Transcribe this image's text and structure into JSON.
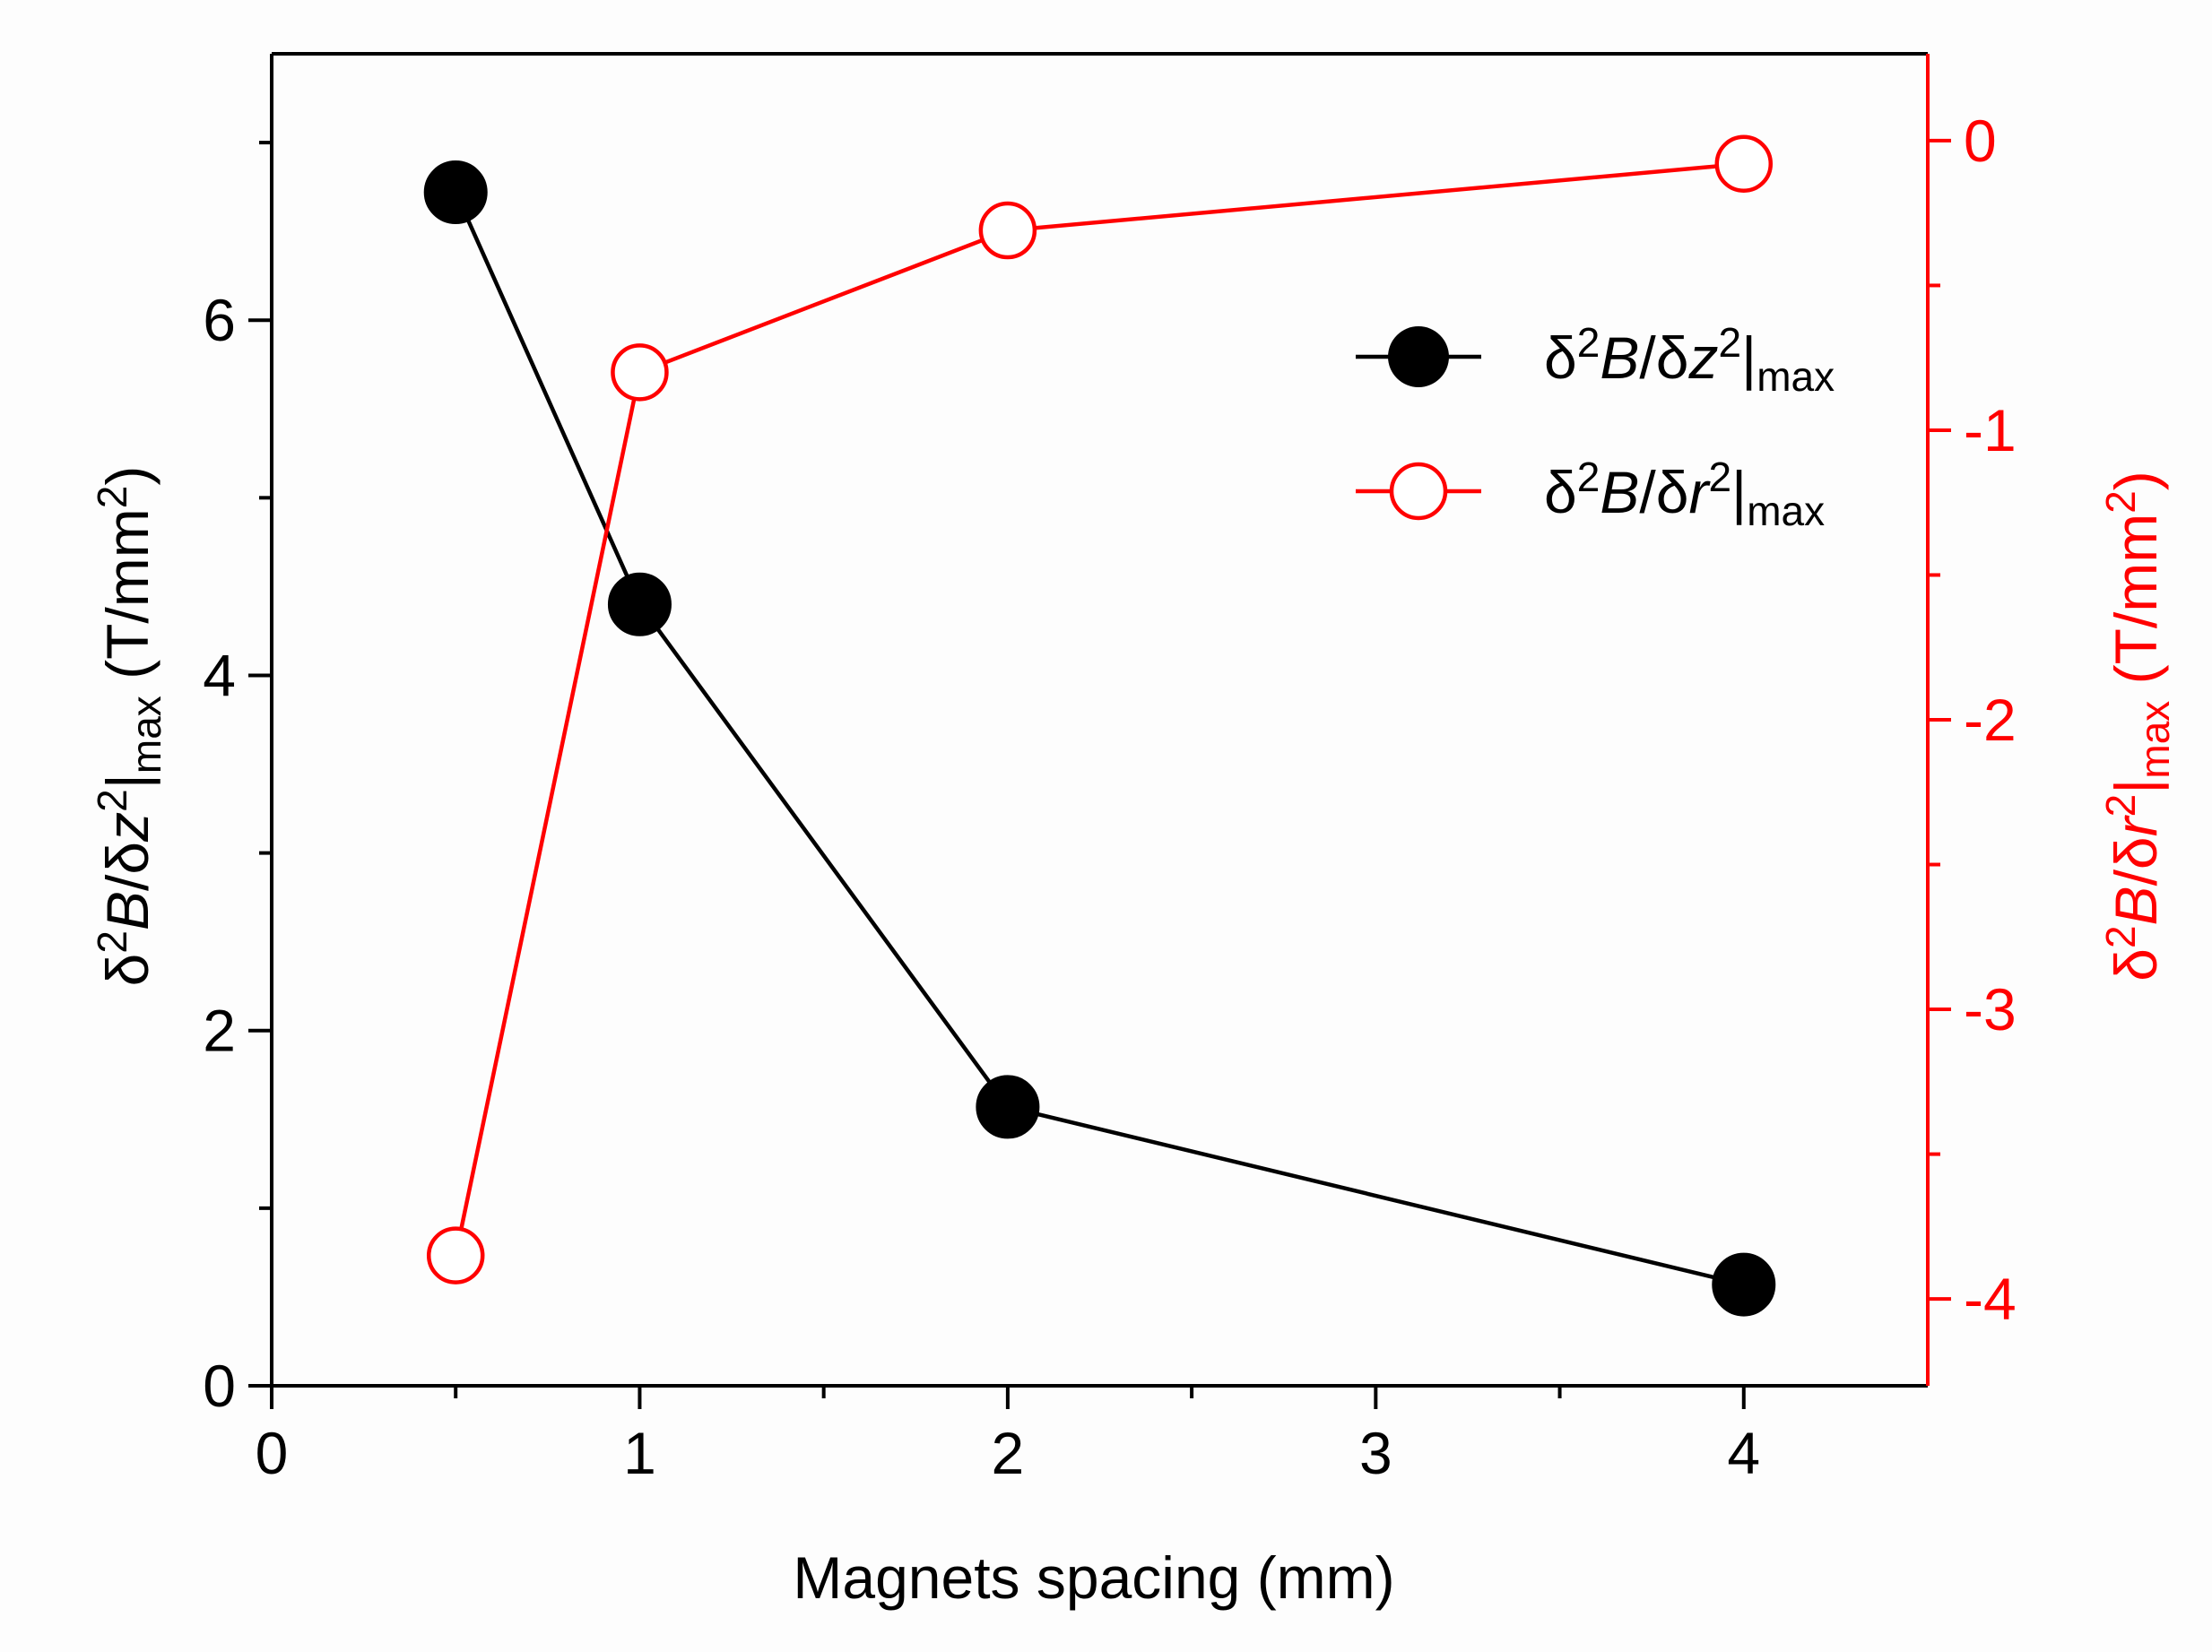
{
  "chart_data": {
    "type": "line",
    "xlabel": "Magnets spacing (mm)",
    "x_range": [
      0,
      4.5
    ],
    "x_ticks": [
      "0",
      "1",
      "2",
      "3",
      "4"
    ],
    "x_tick_values": [
      0,
      1,
      2,
      3,
      4
    ],
    "y_left": {
      "label_parts": [
        "δ",
        "2",
        "B",
        "/δ",
        "z",
        "2",
        "|",
        "max",
        " (T/mm",
        "2",
        ")"
      ],
      "range": [
        0,
        7.5
      ],
      "ticks": [
        "0",
        "2",
        "4",
        "6"
      ],
      "tick_values": [
        0,
        2,
        4,
        6
      ],
      "color": "#000000"
    },
    "y_right": {
      "label_parts": [
        "δ",
        "2",
        "B",
        "/δ",
        "r",
        "2",
        "|",
        "max",
        " (T/mm",
        "2",
        ")"
      ],
      "range": [
        -4.3,
        0.3
      ],
      "ticks": [
        "-4",
        "-3",
        "-2",
        "-1",
        "0"
      ],
      "tick_values": [
        -4,
        -3,
        -2,
        -1,
        0
      ],
      "color": "#ff0000"
    },
    "series": [
      {
        "name": "δ2B/δz2|max",
        "legend_parts": [
          "δ",
          "2",
          "B",
          "/δ",
          "z",
          "2",
          "|",
          "max"
        ],
        "axis": "left",
        "x": [
          0.5,
          1,
          2,
          4
        ],
        "values": [
          6.72,
          4.4,
          1.57,
          0.57
        ],
        "color": "#000000",
        "marker": "filled-circle"
      },
      {
        "name": "δ2B/δr2|max",
        "legend_parts": [
          "δ",
          "2",
          "B",
          "/δ",
          "r",
          "2",
          "|",
          "max"
        ],
        "axis": "right",
        "x": [
          0.5,
          1,
          2,
          4
        ],
        "values": [
          -3.85,
          -0.8,
          -0.31,
          -0.08
        ],
        "color": "#ff0000",
        "marker": "open-circle"
      }
    ],
    "legend_position": "top-right"
  }
}
